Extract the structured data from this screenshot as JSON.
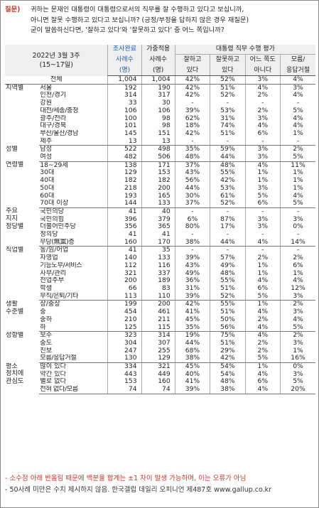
{
  "question": {
    "tag": "질문)",
    "lines": [
      "귀하는 문재인 대통령이 대통령으로서의 직무를 잘 수행하고 있다고 보십니까,",
      "아니면 잘못 수행하고 있다고 보십니까? (긍정/부정을 답하지 않은 경우 재질문)",
      "굳이 말씀하신다면, '잘하고 있다'와 '잘못하고 있다' 중 어느 쪽입니까?"
    ]
  },
  "header": {
    "date": "2022년 3월 3주",
    "period": "(15~17일)",
    "col_survey": [
      "조사완료",
      "사례수",
      "(명)"
    ],
    "col_weight": [
      "가중적용",
      "사례수",
      "(명)"
    ],
    "rating_title": "대통령 직무 수행 평가",
    "rating_cols": [
      [
        "잘하고",
        "있다"
      ],
      [
        "잘못하고",
        "있다"
      ],
      [
        "어느 쪽도",
        "아니다"
      ],
      [
        "모름/",
        "응답거절"
      ]
    ]
  },
  "total": {
    "label": "전체",
    "n": "1,004",
    "w": "1,004",
    "v": [
      "42%",
      "52%",
      "3%",
      "4%"
    ]
  },
  "sections": [
    {
      "group": "지역별",
      "rows": [
        {
          "label": "서울",
          "n": "192",
          "w": "190",
          "v": [
            "42%",
            "51%",
            "4%",
            "3%"
          ]
        },
        {
          "label": "인천/경기",
          "n": "314",
          "w": "317",
          "v": [
            "42%",
            "52%",
            "2%",
            "4%"
          ]
        },
        {
          "label": "강원",
          "n": "33",
          "w": "30",
          "v": [
            "-",
            "-",
            "-",
            "-"
          ]
        },
        {
          "label": "대전/세종/충청",
          "n": "106",
          "w": "106",
          "v": [
            "39%",
            "53%",
            "2%",
            "5%"
          ]
        },
        {
          "label": "광주/전라",
          "n": "100",
          "w": "98",
          "v": [
            "62%",
            "31%",
            "3%",
            "4%"
          ]
        },
        {
          "label": "대구/경북",
          "n": "101",
          "w": "98",
          "v": [
            "18%",
            "74%",
            "4%",
            "4%"
          ]
        },
        {
          "label": "부산/울산/경남",
          "n": "145",
          "w": "151",
          "v": [
            "42%",
            "51%",
            "6%",
            "1%"
          ]
        },
        {
          "label": "제주",
          "n": "13",
          "w": "13",
          "v": [
            "-",
            "-",
            "-",
            "-"
          ]
        }
      ]
    },
    {
      "group": "성별",
      "rows": [
        {
          "label": "남성",
          "n": "522",
          "w": "498",
          "v": [
            "35%",
            "59%",
            "3%",
            "2%"
          ]
        },
        {
          "label": "여성",
          "n": "482",
          "w": "506",
          "v": [
            "48%",
            "44%",
            "3%",
            "5%"
          ]
        }
      ]
    },
    {
      "group": "연령별",
      "rows": [
        {
          "label": "18~29세",
          "n": "138",
          "w": "171",
          "v": [
            "37%",
            "48%",
            "4%",
            "11%"
          ]
        },
        {
          "label": "30대",
          "n": "129",
          "w": "153",
          "v": [
            "43%",
            "55%",
            "1%",
            "1%"
          ]
        },
        {
          "label": "40대",
          "n": "182",
          "w": "182",
          "v": [
            "56%",
            "42%",
            "1%",
            "1%"
          ]
        },
        {
          "label": "50대",
          "n": "218",
          "w": "200",
          "v": [
            "44%",
            "53%",
            "3%",
            "1%"
          ]
        },
        {
          "label": "60대",
          "n": "193",
          "w": "165",
          "v": [
            "30%",
            "61%",
            "5%",
            "4%"
          ]
        },
        {
          "label": "70대 이상",
          "n": "144",
          "w": "133",
          "v": [
            "37%",
            "52%",
            "6%",
            "5%"
          ]
        }
      ]
    },
    {
      "group": "주요\n지지\n정당별",
      "rows": [
        {
          "label": "국민의당",
          "n": "41",
          "w": "40",
          "v": [
            "-",
            "-",
            "-",
            "-"
          ]
        },
        {
          "label": "국민의힘",
          "n": "396",
          "w": "379",
          "v": [
            "6%",
            "87%",
            "3%",
            "3%"
          ]
        },
        {
          "label": "더불어민주당",
          "n": "356",
          "w": "365",
          "v": [
            "80%",
            "17%",
            "3%",
            "0%"
          ]
        },
        {
          "label": "정의당",
          "n": "41",
          "w": "41",
          "v": [
            "-",
            "-",
            "-",
            "-"
          ]
        },
        {
          "label": "무당(無黨)층",
          "n": "160",
          "w": "170",
          "v": [
            "38%",
            "44%",
            "4%",
            "14%"
          ]
        }
      ]
    },
    {
      "group": "직업별",
      "rows": [
        {
          "label": "농/임/어업",
          "n": "41",
          "w": "35",
          "v": [
            "-",
            "-",
            "-",
            "-"
          ]
        },
        {
          "label": "자영업",
          "n": "140",
          "w": "133",
          "v": [
            "39%",
            "57%",
            "2%",
            "2%"
          ]
        },
        {
          "label": "기능노무/서비스",
          "n": "112",
          "w": "116",
          "v": [
            "43%",
            "49%",
            "1%",
            "6%"
          ]
        },
        {
          "label": "사무/관리",
          "n": "321",
          "w": "337",
          "v": [
            "49%",
            "48%",
            "1%",
            "1%"
          ]
        },
        {
          "label": "전업주부",
          "n": "200",
          "w": "189",
          "v": [
            "36%",
            "55%",
            "4%",
            "4%"
          ]
        },
        {
          "label": "학생",
          "n": "66",
          "w": "83",
          "v": [
            "31%",
            "51%",
            "6%",
            "12%"
          ]
        },
        {
          "label": "무직/은퇴/기타",
          "n": "113",
          "w": "110",
          "v": [
            "39%",
            "52%",
            "5%",
            "3%"
          ]
        }
      ]
    },
    {
      "group": "생활\n수준별",
      "rows": [
        {
          "label": "상/중상",
          "n": "199",
          "w": "200",
          "v": [
            "42%",
            "55%",
            "1%",
            "2%"
          ]
        },
        {
          "label": "중",
          "n": "454",
          "w": "461",
          "v": [
            "41%",
            "51%",
            "4%",
            "3%"
          ]
        },
        {
          "label": "중하",
          "n": "210",
          "w": "211",
          "v": [
            "45%",
            "50%",
            "2%",
            "4%"
          ]
        },
        {
          "label": "하",
          "n": "125",
          "w": "115",
          "v": [
            "35%",
            "56%",
            "4%",
            "5%"
          ]
        }
      ]
    },
    {
      "group": "성향별",
      "rows": [
        {
          "label": "보수",
          "n": "323",
          "w": "314",
          "v": [
            "19%",
            "75%",
            "4%",
            "2%"
          ]
        },
        {
          "label": "중도",
          "n": "304",
          "w": "307",
          "v": [
            "44%",
            "51%",
            "2%",
            "3%"
          ]
        },
        {
          "label": "진보",
          "n": "247",
          "w": "255",
          "v": [
            "68%",
            "29%",
            "2%",
            "1%"
          ]
        },
        {
          "label": "모름/응답거절",
          "n": "130",
          "w": "129",
          "v": [
            "38%",
            "42%",
            "5%",
            "16%"
          ]
        }
      ]
    },
    {
      "group": "평소\n정치에\n관심도",
      "rows": [
        {
          "label": "많이 있다",
          "n": "334",
          "w": "321",
          "v": [
            "45%",
            "54%",
            "1%",
            "0%"
          ]
        },
        {
          "label": "약간 있다",
          "n": "443",
          "w": "449",
          "v": [
            "40%",
            "54%",
            "4%",
            "3%"
          ]
        },
        {
          "label": "별로 없다",
          "n": "153",
          "w": "160",
          "v": [
            "41%",
            "48%",
            "6%",
            "5%"
          ]
        },
        {
          "label": "전혀 없다/모름",
          "n": "74",
          "w": "74",
          "v": [
            "39%",
            "38%",
            "4%",
            "20%"
          ]
        }
      ]
    }
  ],
  "footer": {
    "note1": "- 소수점 아래 반올림 때문에 백분율 합계는 ±1 차이 발생 가능하며, 이는 오류가 아님",
    "note2": "- 50사례 미만은 수치 제시하지 않음. 한국갤럽 데일리 오피니언 제487호 www.gallup.co.kr"
  }
}
